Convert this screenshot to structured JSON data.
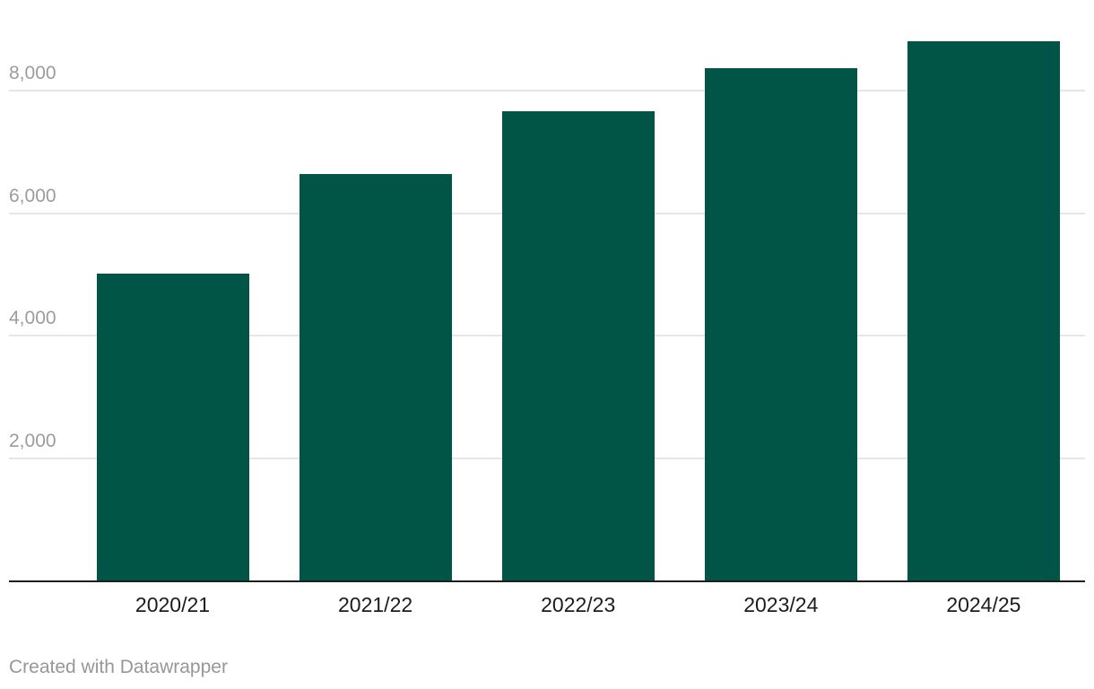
{
  "footer": {
    "attribution": "Created with Datawrapper"
  },
  "colors": {
    "bar": "#015546",
    "gridline": "#e6e6e6",
    "axis_line": "#1d1d1d",
    "y_tick_text": "#9c9c9c",
    "x_tick_text": "#1c1c1c",
    "footer_text": "#979797",
    "background": "#ffffff"
  },
  "chart_data": {
    "type": "bar",
    "categories": [
      "2020/21",
      "2021/22",
      "2022/23",
      "2023/24",
      "2024/25"
    ],
    "values": [
      5010,
      6640,
      7670,
      8370,
      8800
    ],
    "title": "",
    "xlabel": "",
    "ylabel": "",
    "ylim": [
      0,
      8800
    ],
    "grid": true,
    "legend": "none",
    "yticks": [
      {
        "value": 2000,
        "label": "2,000"
      },
      {
        "value": 4000,
        "label": "4,000"
      },
      {
        "value": 6000,
        "label": "6,000"
      },
      {
        "value": 8000,
        "label": "8,000"
      }
    ]
  }
}
